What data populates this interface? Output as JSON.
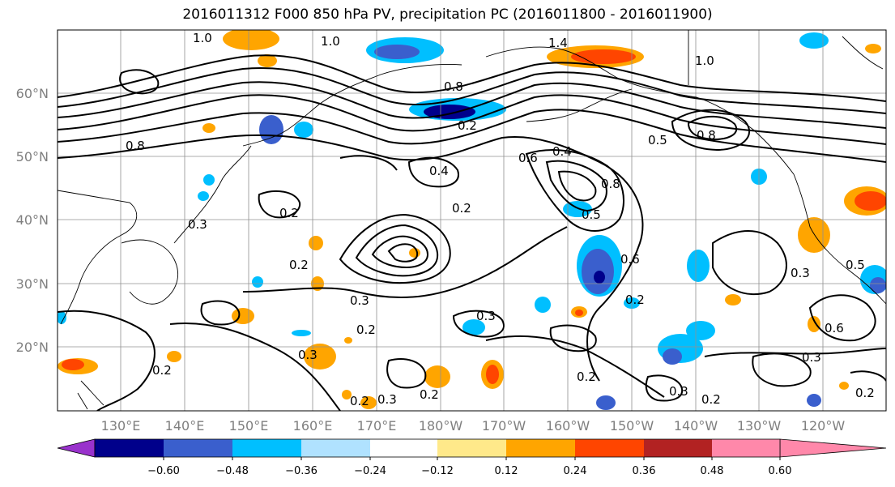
{
  "title": "2016011312 F000 850 hPa PV, precipitation PC (2016011800 - 2016011900)",
  "map": {
    "lat_labels": [
      "60°N",
      "50°N",
      "40°N",
      "30°N",
      "20°N"
    ],
    "lon_labels": [
      "130°E",
      "140°E",
      "150°E",
      "160°E",
      "170°E",
      "180°W",
      "170°W",
      "160°W",
      "150°W",
      "140°W",
      "130°W",
      "120°W"
    ],
    "contour_labels": [
      "1.0",
      "1.0",
      "1.4",
      "1.0",
      "0.8",
      "0.8",
      "0.5",
      "0.8",
      "0.6",
      "0.4",
      "0.4",
      "0.2",
      "0.8",
      "0.5",
      "0.2",
      "0.2",
      "0.3",
      "0.2",
      "0.3",
      "0.2",
      "0.3",
      "0.6",
      "0.2",
      "0.3",
      "0.2",
      "0.2",
      "0.2",
      "0.3",
      "0.2",
      "0.3",
      "0.3",
      "0.2",
      "0.5",
      "0.6",
      "0.3",
      "0.2"
    ]
  },
  "colorbar": {
    "colors": [
      "#9932cc",
      "#00008b",
      "#3a5fcd",
      "#00bfff",
      "#b0e2ff",
      "#ffffff",
      "#ffe98a",
      "#ffa500",
      "#ff4500",
      "#b22222",
      "#ff88aa"
    ],
    "tick_labels": [
      "−0.60",
      "−0.48",
      "−0.36",
      "−0.24",
      "−0.12",
      "0.12",
      "0.24",
      "0.36",
      "0.48",
      "0.60"
    ]
  }
}
